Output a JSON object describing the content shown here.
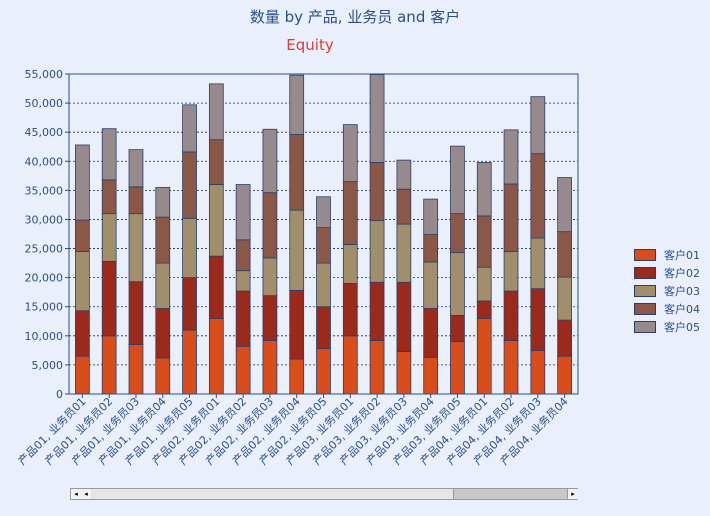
{
  "chart_data": {
    "type": "bar",
    "stacked": true,
    "title": "数量 by 产品, 业务员 and 客户",
    "subtitle": "Equity",
    "ylim": [
      0,
      55000
    ],
    "yticks": [
      "0",
      "5,000",
      "10,000",
      "15,000",
      "20,000",
      "25,000",
      "30,000",
      "35,000",
      "40,000",
      "45,000",
      "50,000",
      "55,000"
    ],
    "grid": true,
    "legend_position": "right",
    "categories": [
      "产品01, 业务员01",
      "产品01, 业务员02",
      "产品01, 业务员03",
      "产品01, 业务员04",
      "产品01, 业务员05",
      "产品02, 业务员01",
      "产品02, 业务员02",
      "产品02, 业务员03",
      "产品02, 业务员04",
      "产品02, 业务员05",
      "产品03, 业务员01",
      "产品03, 业务员02",
      "产品03, 业务员03",
      "产品03, 业务员04",
      "产品03, 业务员05",
      "产品04, 业务员01",
      "产品04, 业务员02",
      "产品04, 业务员03",
      "产品04, 业务员04"
    ],
    "series": [
      {
        "name": "客户01",
        "color": "#d94d1a",
        "values": [
          6500,
          10000,
          8500,
          6200,
          11000,
          13000,
          8200,
          9200,
          6000,
          7800,
          10000,
          9200,
          7300,
          6300,
          9000,
          13000,
          9200,
          7500,
          6500
        ]
      },
      {
        "name": "客户02",
        "color": "#9b2a1a",
        "values": [
          7800,
          12800,
          10800,
          8500,
          9000,
          10700,
          9500,
          7700,
          11800,
          7200,
          9000,
          10000,
          11900,
          8400,
          4500,
          3000,
          8500,
          10600,
          6200
        ]
      },
      {
        "name": "客户03",
        "color": "#a18e6b",
        "values": [
          10200,
          8200,
          11700,
          7800,
          10200,
          12300,
          3500,
          6500,
          13800,
          7500,
          6700,
          10600,
          10000,
          8000,
          10800,
          5800,
          6800,
          8700,
          7400
        ]
      },
      {
        "name": "客户04",
        "color": "#8b5848",
        "values": [
          5400,
          5800,
          4600,
          7900,
          11400,
          7700,
          5300,
          11200,
          13000,
          6100,
          10800,
          10000,
          6000,
          4700,
          6700,
          8800,
          11600,
          14500,
          7800
        ]
      },
      {
        "name": "客户05",
        "color": "#978a8c",
        "values": [
          12900,
          8800,
          6400,
          5100,
          8100,
          9600,
          9500,
          10900,
          10200,
          5300,
          9800,
          15100,
          5000,
          6100,
          11600,
          9200,
          9300,
          9800,
          9300
        ]
      }
    ]
  },
  "scrollbar": {
    "left_arrow": "◂",
    "right_arrow": "▸"
  }
}
